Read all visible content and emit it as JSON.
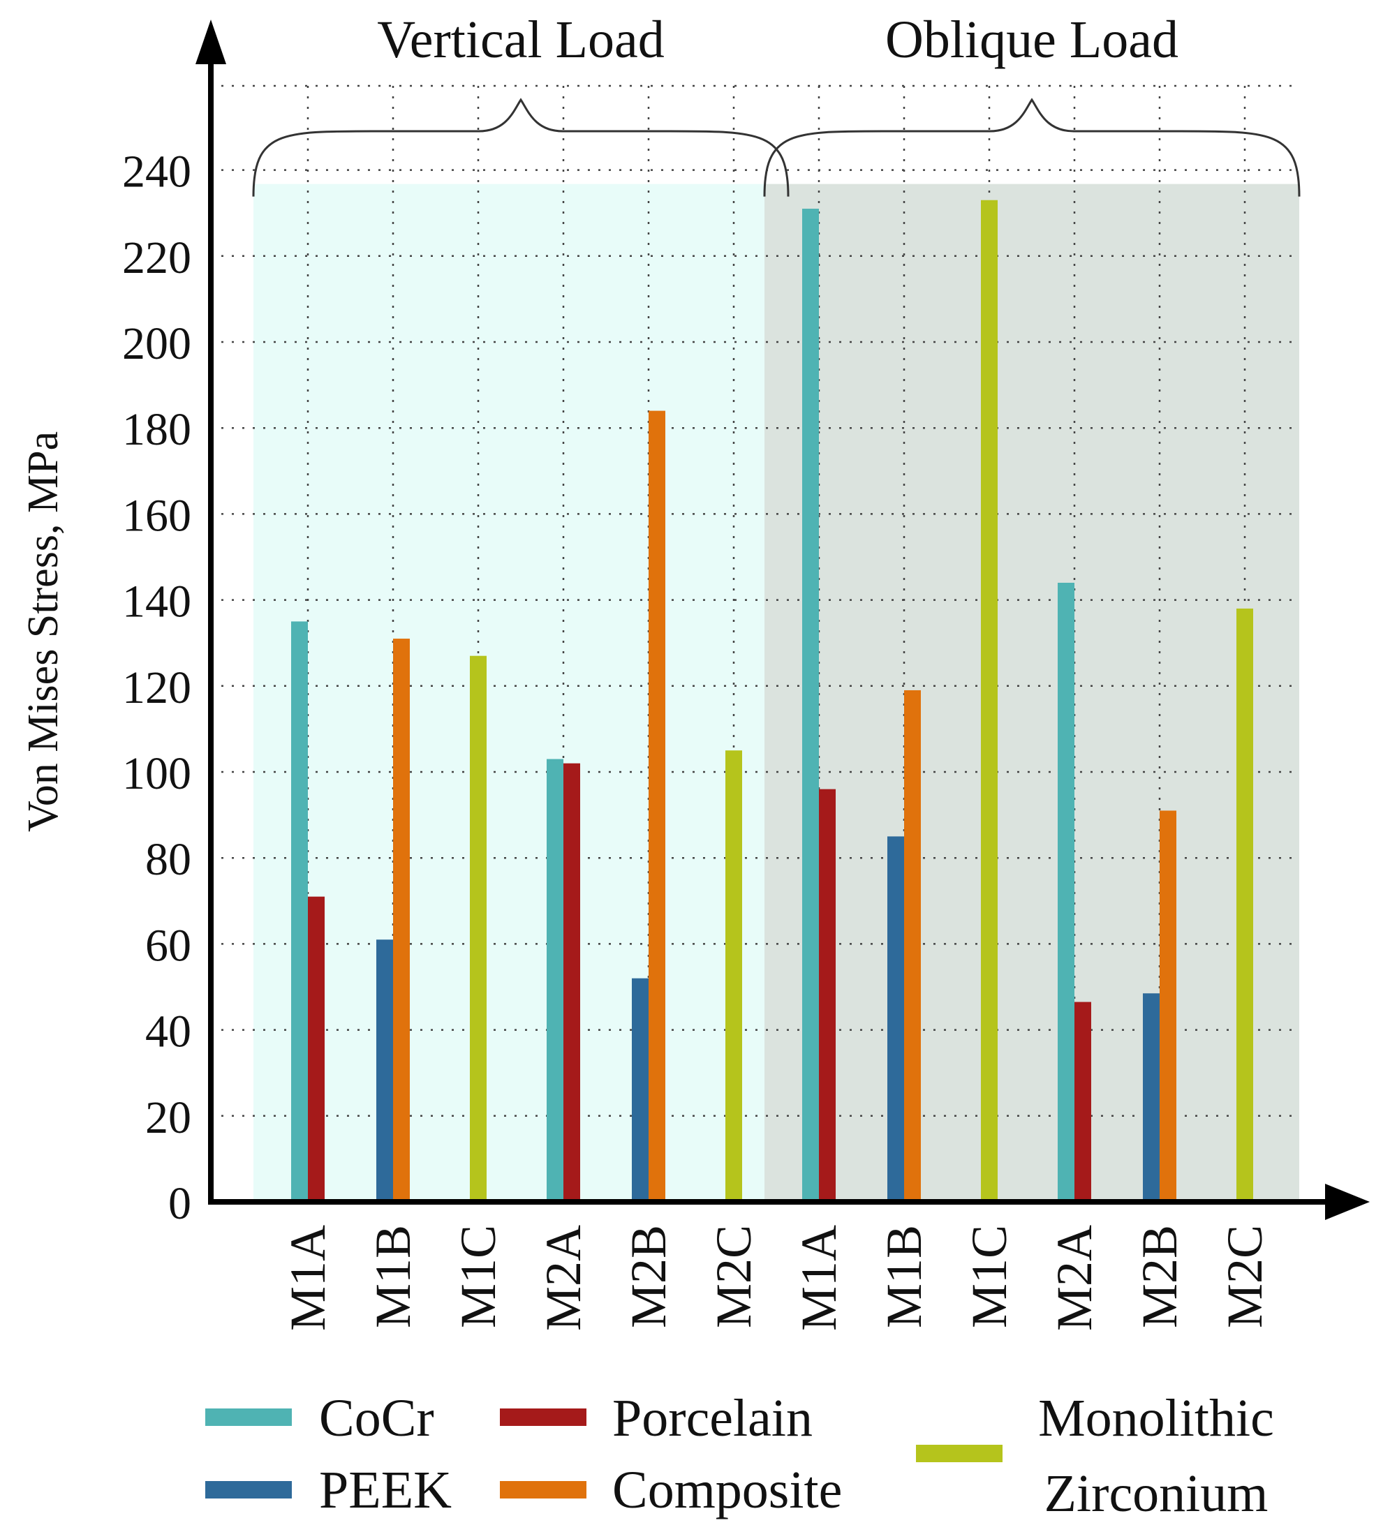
{
  "chart_data": {
    "type": "bar",
    "ylabel": "Von Mises Stress, MPa",
    "xlabel": "",
    "ylim": [
      0,
      250
    ],
    "yticks": [
      0,
      20,
      40,
      60,
      80,
      100,
      120,
      140,
      160,
      180,
      200,
      220,
      240
    ],
    "grid": true,
    "groups": [
      {
        "label": "Vertical Load",
        "background": "#e8fcf9",
        "categories": [
          "M1A",
          "M1B",
          "M1C",
          "M2A",
          "M2B",
          "M2C"
        ]
      },
      {
        "label": "Oblique Load",
        "background": "#dbe3de",
        "categories": [
          "M1A",
          "M1B",
          "M1C",
          "M2A",
          "M2B",
          "M2C"
        ]
      }
    ],
    "categories": [
      "M1A",
      "M1B",
      "M1C",
      "M2A",
      "M2B",
      "M2C",
      "M1A",
      "M1B",
      "M1C",
      "M2A",
      "M2B",
      "M2C"
    ],
    "series": [
      {
        "name": "CoCr",
        "color": "#4fb3b3",
        "values": [
          135,
          null,
          null,
          103,
          null,
          null,
          231,
          null,
          null,
          144,
          null,
          null
        ]
      },
      {
        "name": "PEEK",
        "color": "#2e6a9a",
        "values": [
          null,
          61,
          null,
          null,
          52,
          null,
          null,
          85,
          null,
          null,
          48.5,
          null
        ]
      },
      {
        "name": "Porcelain",
        "color": "#a51a1a",
        "values": [
          71,
          null,
          null,
          102,
          null,
          null,
          96,
          null,
          null,
          46.5,
          null,
          null
        ]
      },
      {
        "name": "Composite",
        "color": "#e0720c",
        "values": [
          null,
          131,
          null,
          null,
          184,
          null,
          null,
          119,
          null,
          null,
          91,
          null
        ]
      },
      {
        "name": "Monolithic Zirconium",
        "color": "#b5c41c",
        "values": [
          null,
          null,
          127,
          null,
          null,
          105,
          null,
          null,
          233,
          null,
          null,
          138
        ]
      }
    ],
    "legend": {
      "placement": "bottom",
      "entries": [
        {
          "text": "CoCr",
          "color": "#4fb3b3"
        },
        {
          "text": "PEEK",
          "color": "#2e6a9a"
        },
        {
          "text": "Porcelain",
          "color": "#a51a1a"
        },
        {
          "text": "Composite",
          "color": "#e0720c"
        },
        {
          "text": "Monolithic",
          "text2": "Zirconium",
          "color": "#b5c41c"
        }
      ]
    }
  }
}
